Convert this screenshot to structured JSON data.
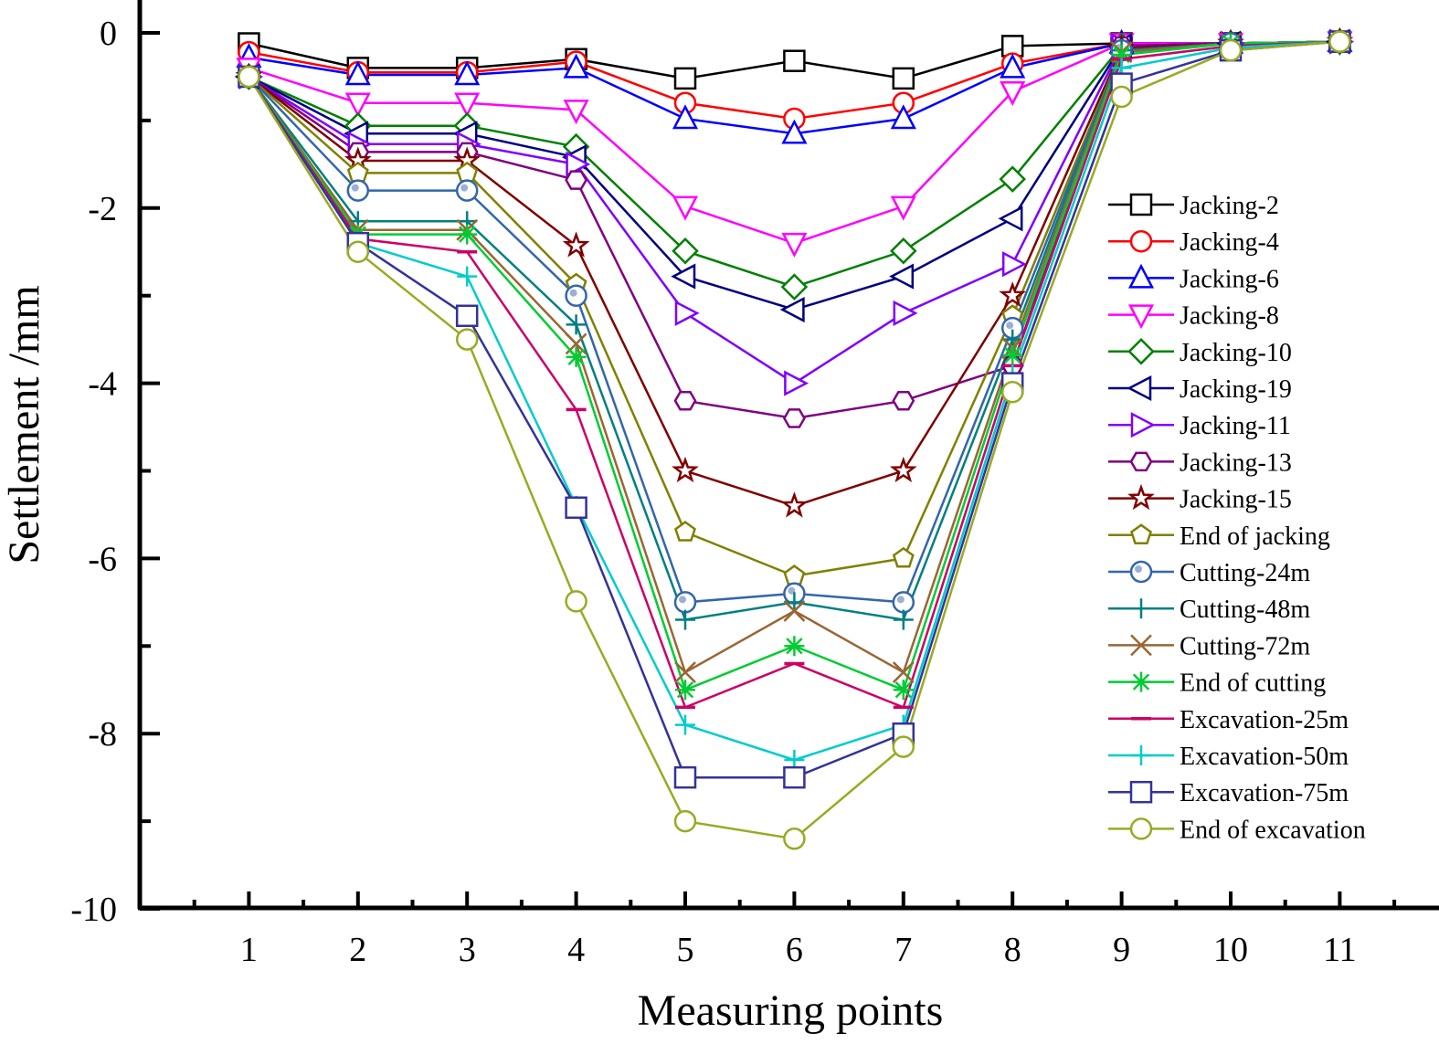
{
  "chart_data": {
    "type": "line",
    "title": "",
    "xlabel": "Measuring points",
    "ylabel": "Settlement /mm",
    "xlim": [
      0,
      12
    ],
    "ylim": [
      -10,
      0.35
    ],
    "x_ticks": [
      1,
      2,
      3,
      4,
      5,
      6,
      7,
      8,
      9,
      10,
      11
    ],
    "y_ticks": [
      0,
      -2,
      -4,
      -6,
      -8,
      -10
    ],
    "grid": false,
    "legend_position": "right",
    "x": [
      1,
      2,
      3,
      4,
      5,
      6,
      7,
      8,
      9,
      10,
      11
    ],
    "series": [
      {
        "name": "Jacking-2",
        "color": "#000000",
        "marker": "square",
        "values": [
          -0.12,
          -0.4,
          -0.4,
          -0.3,
          -0.52,
          -0.32,
          -0.52,
          -0.15,
          -0.12,
          -0.12,
          -0.1
        ]
      },
      {
        "name": "Jacking-4",
        "color": "#ff0000",
        "marker": "circle",
        "values": [
          -0.22,
          -0.45,
          -0.45,
          -0.33,
          -0.8,
          -0.98,
          -0.8,
          -0.35,
          -0.12,
          -0.12,
          -0.1
        ]
      },
      {
        "name": "Jacking-6",
        "color": "#0000ff",
        "marker": "triangle-up",
        "values": [
          -0.28,
          -0.48,
          -0.48,
          -0.4,
          -0.98,
          -1.15,
          -0.98,
          -0.4,
          -0.12,
          -0.12,
          -0.1
        ]
      },
      {
        "name": "Jacking-8",
        "color": "#ff00ff",
        "marker": "triangle-down",
        "values": [
          -0.4,
          -0.8,
          -0.8,
          -0.88,
          -1.98,
          -2.4,
          -1.98,
          -0.67,
          -0.12,
          -0.12,
          -0.1
        ]
      },
      {
        "name": "Jacking-10",
        "color": "#008000",
        "marker": "diamond",
        "values": [
          -0.5,
          -1.06,
          -1.06,
          -1.3,
          -2.49,
          -2.9,
          -2.49,
          -1.67,
          -0.15,
          -0.12,
          -0.1
        ]
      },
      {
        "name": "Jacking-19",
        "color": "#000080",
        "marker": "triangle-left",
        "values": [
          -0.5,
          -1.15,
          -1.15,
          -1.42,
          -2.78,
          -3.16,
          -2.78,
          -2.12,
          -0.15,
          -0.12,
          -0.1
        ]
      },
      {
        "name": "Jacking-11",
        "color": "#8000ff",
        "marker": "triangle-right",
        "values": [
          -0.5,
          -1.27,
          -1.27,
          -1.5,
          -3.2,
          -4.0,
          -3.2,
          -2.64,
          -0.15,
          -0.12,
          -0.1
        ]
      },
      {
        "name": "Jacking-13",
        "color": "#800080",
        "marker": "hexagon",
        "values": [
          -0.5,
          -1.36,
          -1.36,
          -1.68,
          -4.2,
          -4.4,
          -4.2,
          -3.8,
          -0.15,
          -0.12,
          -0.1
        ]
      },
      {
        "name": "Jacking-15",
        "color": "#800000",
        "marker": "star",
        "values": [
          -0.5,
          -1.46,
          -1.46,
          -2.43,
          -5.0,
          -5.4,
          -5.0,
          -3.0,
          -0.18,
          -0.12,
          -0.1
        ]
      },
      {
        "name": "End of jacking",
        "color": "#808000",
        "marker": "pentagon",
        "values": [
          -0.5,
          -1.6,
          -1.6,
          -2.87,
          -5.7,
          -6.2,
          -6.0,
          -3.23,
          -0.2,
          -0.12,
          -0.1
        ]
      },
      {
        "name": "Cutting-24m",
        "color": "#3366aa",
        "marker": "circle-dot",
        "values": [
          -0.5,
          -1.8,
          -1.8,
          -3.0,
          -6.5,
          -6.4,
          -6.5,
          -3.37,
          -0.2,
          -0.12,
          -0.1
        ]
      },
      {
        "name": "Cutting-48m",
        "color": "#008080",
        "marker": "plus",
        "values": [
          -0.5,
          -2.15,
          -2.15,
          -3.33,
          -6.7,
          -6.5,
          -6.7,
          -3.5,
          -0.2,
          -0.12,
          -0.1
        ]
      },
      {
        "name": "Cutting-72m",
        "color": "#996633",
        "marker": "cross",
        "values": [
          -0.5,
          -2.25,
          -2.25,
          -3.55,
          -7.3,
          -6.6,
          -7.3,
          -3.6,
          -0.22,
          -0.12,
          -0.1
        ]
      },
      {
        "name": "End of cutting",
        "color": "#00cc33",
        "marker": "asterisk",
        "values": [
          -0.5,
          -2.3,
          -2.3,
          -3.7,
          -7.5,
          -7.0,
          -7.5,
          -3.68,
          -0.25,
          -0.12,
          -0.1
        ]
      },
      {
        "name": "Excavation-25m",
        "color": "#cc0066",
        "marker": "dash",
        "values": [
          -0.5,
          -2.35,
          -2.5,
          -4.3,
          -7.7,
          -7.2,
          -7.7,
          -3.8,
          -0.3,
          -0.15,
          -0.1
        ]
      },
      {
        "name": "Excavation-50m",
        "color": "#00cccc",
        "marker": "plus",
        "values": [
          -0.5,
          -2.4,
          -2.78,
          -5.4,
          -7.9,
          -8.3,
          -7.9,
          -3.9,
          -0.4,
          -0.17,
          -0.1
        ]
      },
      {
        "name": "Excavation-75m",
        "color": "#333399",
        "marker": "square",
        "values": [
          -0.5,
          -2.4,
          -3.23,
          -5.42,
          -8.5,
          -8.5,
          -8.0,
          -4.0,
          -0.58,
          -0.2,
          -0.1
        ]
      },
      {
        "name": "End of excavation",
        "color": "#99aa22",
        "marker": "circle",
        "values": [
          -0.5,
          -2.5,
          -3.5,
          -6.49,
          -9.0,
          -9.2,
          -8.15,
          -4.1,
          -0.73,
          -0.2,
          -0.1
        ]
      }
    ]
  }
}
